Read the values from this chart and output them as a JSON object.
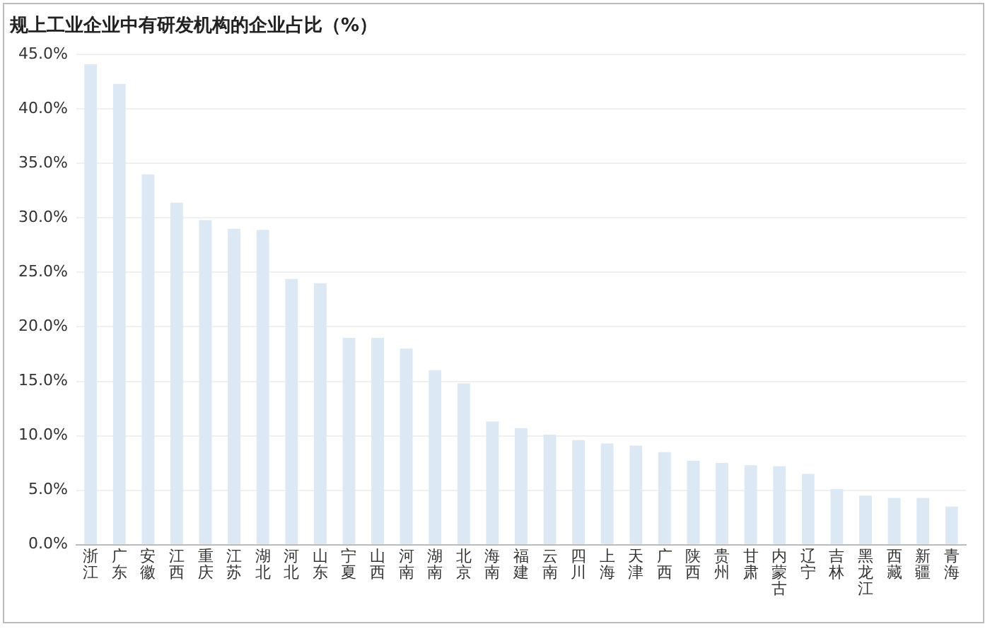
{
  "chart_data": {
    "type": "bar",
    "title": "规上工业企业中有研发机构的企业占比（%）",
    "categories": [
      "浙江",
      "广东",
      "安徽",
      "江西",
      "重庆",
      "江苏",
      "湖北",
      "河北",
      "山东",
      "宁夏",
      "山西",
      "河南",
      "湖南",
      "北京",
      "海南",
      "福建",
      "云南",
      "四川",
      "上海",
      "天津",
      "广西",
      "陕西",
      "贵州",
      "甘肃",
      "内蒙古",
      "辽宁",
      "吉林",
      "黑龙江",
      "西藏",
      "新疆",
      "青海"
    ],
    "values": [
      44.1,
      42.3,
      34.0,
      31.4,
      29.8,
      29.0,
      28.9,
      24.4,
      24.0,
      19.0,
      19.0,
      18.0,
      16.0,
      14.8,
      11.3,
      10.7,
      10.1,
      9.6,
      9.3,
      9.1,
      8.5,
      7.7,
      7.5,
      7.3,
      7.2,
      6.5,
      5.1,
      4.5,
      4.3,
      4.3,
      3.5
    ],
    "color": "#dde8f5",
    "ylim": [
      0,
      45
    ],
    "yticks": [
      {
        "value": 0,
        "label": "0.0%"
      },
      {
        "value": 5,
        "label": "5.0%"
      },
      {
        "value": 10,
        "label": "10.0%"
      },
      {
        "value": 15,
        "label": "15.0%"
      },
      {
        "value": 20,
        "label": "20.0%"
      },
      {
        "value": 25,
        "label": "25.0%"
      },
      {
        "value": 30,
        "label": "30.0%"
      },
      {
        "value": 35,
        "label": "35.0%"
      },
      {
        "value": 40,
        "label": "40.0%"
      },
      {
        "value": 45,
        "label": "45.0%"
      }
    ],
    "grid": "y",
    "legend": false
  }
}
